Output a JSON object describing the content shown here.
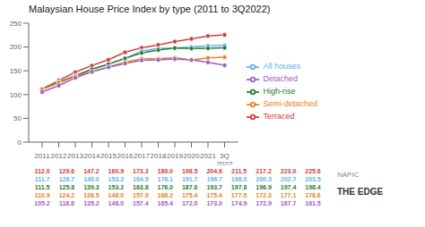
{
  "chart_data": {
    "type": "line",
    "title": "Malaysian House Price Index by type (2011 to 3Q2022)",
    "categories": [
      "2011",
      "2012",
      "2013",
      "2014",
      "2015",
      "2016",
      "2017",
      "2018",
      "2019",
      "2020",
      "2021",
      "3Q\n2022"
    ],
    "series": [
      {
        "name": "Terraced",
        "color": "#d63b3b",
        "values": [
          112.0,
          129.6,
          147.2,
          160.9,
          173.3,
          189.0,
          198.5,
          204.6,
          211.5,
          217.2,
          223.0,
          225.6
        ]
      },
      {
        "name": "All houses",
        "color": "#5ab4f0",
        "values": [
          111.7,
          126.7,
          140.0,
          153.2,
          164.5,
          176.1,
          191.7,
          196.7,
          198.0,
          200.3,
          202.7,
          203.5
        ]
      },
      {
        "name": "High-rise",
        "color": "#2d7a34",
        "values": [
          111.5,
          125.8,
          139.3,
          153.2,
          163.8,
          176.0,
          187.6,
          193.7,
          197.8,
          196.9,
          197.4,
          198.4
        ]
      },
      {
        "name": "Semi-detached",
        "color": "#f08020",
        "values": [
          110.9,
          124.2,
          138.5,
          148.0,
          157.9,
          168.2,
          175.4,
          175.4,
          177.5,
          172.3,
          177.1,
          178.6
        ]
      },
      {
        "name": "Detached",
        "color": "#9b5fc0",
        "values": [
          105.2,
          118.8,
          135.2,
          148.0,
          157.4,
          165.4,
          172.0,
          173.0,
          174.9,
          172.9,
          167.7,
          161.5
        ]
      }
    ],
    "ylim": [
      0,
      250
    ],
    "yticks": [
      0,
      50,
      100,
      150,
      200,
      250
    ],
    "grid": false,
    "legend": "right",
    "marker": "circle",
    "data_labels": true,
    "annotations": [
      "NAPIC",
      "THE EDGE"
    ]
  }
}
